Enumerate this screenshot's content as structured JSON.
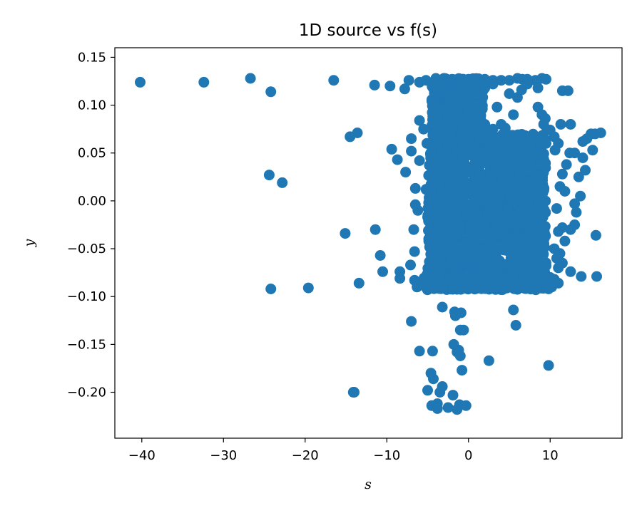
{
  "chart_data": {
    "type": "scatter",
    "title": "1D source vs f(s)",
    "xlabel": "s",
    "ylabel": "y",
    "xlim": [
      -43.3,
      18.8
    ],
    "ylim": [
      -0.248,
      0.16
    ],
    "xticks": [
      -40,
      -30,
      -20,
      -10,
      0,
      10
    ],
    "yticks": [
      -0.2,
      -0.15,
      -0.1,
      -0.05,
      0.0,
      0.05,
      0.1,
      0.15
    ],
    "xtick_labels": [
      "−40",
      "−30",
      "−20",
      "−10",
      "0",
      "10"
    ],
    "ytick_labels": [
      "−0.20",
      "−0.15",
      "−0.10",
      "−0.05",
      "0.00",
      "0.05",
      "0.10",
      "0.15"
    ],
    "grid": false,
    "marker_color": "#1f77b4",
    "series": [
      {
        "points": [
          [
            -40.2,
            0.124
          ],
          [
            -32.4,
            0.124
          ],
          [
            -26.7,
            0.128
          ],
          [
            -24.2,
            0.114
          ],
          [
            -16.5,
            0.126
          ],
          [
            -14.5,
            0.067
          ],
          [
            -13.6,
            0.071
          ],
          [
            -24.4,
            0.027
          ],
          [
            -22.8,
            0.019
          ],
          [
            -15.1,
            -0.034
          ],
          [
            -24.2,
            -0.092
          ],
          [
            -19.6,
            -0.091
          ],
          [
            -13.4,
            -0.086
          ],
          [
            -14.1,
            -0.2
          ],
          [
            -11.5,
            0.121
          ],
          [
            -9.6,
            0.12
          ],
          [
            -7.8,
            0.117
          ],
          [
            -9.4,
            0.054
          ],
          [
            -8.7,
            0.043
          ],
          [
            -7.7,
            0.03
          ],
          [
            -11.4,
            -0.03
          ],
          [
            -10.8,
            -0.057
          ],
          [
            -10.5,
            -0.074
          ],
          [
            -8.4,
            -0.074
          ],
          [
            -8.4,
            -0.081
          ],
          [
            -7.1,
            -0.067
          ],
          [
            -7.0,
            -0.126
          ],
          [
            -6.0,
            -0.157
          ],
          [
            -4.4,
            -0.157
          ],
          [
            -3.2,
            -0.111
          ],
          [
            -1.7,
            -0.116
          ],
          [
            -1.6,
            -0.12
          ],
          [
            -0.9,
            -0.117
          ],
          [
            -0.6,
            -0.135
          ],
          [
            -1.8,
            -0.15
          ],
          [
            -1.2,
            -0.156
          ],
          [
            -1.4,
            -0.158
          ],
          [
            -1.0,
            -0.162
          ],
          [
            -0.8,
            -0.177
          ],
          [
            -4.6,
            -0.18
          ],
          [
            -4.3,
            -0.186
          ],
          [
            -3.2,
            -0.194
          ],
          [
            -5.0,
            -0.198
          ],
          [
            -3.5,
            -0.2
          ],
          [
            -1.9,
            -0.203
          ],
          [
            -4.5,
            -0.214
          ],
          [
            -3.8,
            -0.212
          ],
          [
            -2.5,
            -0.216
          ],
          [
            -1.1,
            -0.213
          ],
          [
            -0.3,
            -0.214
          ],
          [
            -1.4,
            -0.218
          ],
          [
            -3.8,
            -0.217
          ],
          [
            -14.0,
            -0.2
          ],
          [
            2.5,
            -0.167
          ],
          [
            5.5,
            -0.114
          ],
          [
            5.8,
            -0.13
          ],
          [
            9.8,
            -0.172
          ],
          [
            -7.0,
            0.065
          ],
          [
            -7.0,
            0.052
          ],
          [
            -6.0,
            0.084
          ],
          [
            -6.0,
            0.042
          ],
          [
            -6.5,
            0.013
          ],
          [
            -6.5,
            -0.004
          ],
          [
            -6.2,
            -0.01
          ],
          [
            -6.7,
            -0.03
          ],
          [
            -6.6,
            -0.053
          ],
          [
            -6.6,
            -0.083
          ],
          [
            -6.3,
            -0.09
          ],
          [
            -5.2,
            0.012
          ],
          [
            -5.5,
            0.075
          ],
          [
            -5.1,
            0.06
          ],
          [
            -4.6,
            0.05
          ],
          [
            -7.3,
            0.126
          ],
          [
            -6.0,
            0.124
          ],
          [
            -5.2,
            0.126
          ],
          [
            -4.0,
            0.128
          ],
          [
            -3.0,
            0.128
          ],
          [
            -2.0,
            0.127
          ],
          [
            -1.0,
            0.126
          ],
          [
            0.0,
            0.127
          ],
          [
            1.0,
            0.127
          ],
          [
            2.0,
            0.127
          ],
          [
            3.0,
            0.126
          ],
          [
            4.0,
            0.126
          ],
          [
            5.0,
            0.126
          ],
          [
            6.0,
            0.128
          ],
          [
            6.6,
            0.127
          ],
          [
            7.2,
            0.127
          ],
          [
            8.2,
            0.126
          ],
          [
            9.0,
            0.128
          ],
          [
            9.5,
            0.127
          ],
          [
            -4.0,
            0.118
          ],
          [
            -3.0,
            0.115
          ],
          [
            -2.0,
            0.112
          ],
          [
            -1.0,
            0.11
          ],
          [
            0.0,
            0.115
          ],
          [
            1.0,
            0.112
          ],
          [
            2.0,
            0.118
          ],
          [
            3.0,
            0.122
          ],
          [
            3.5,
            0.098
          ],
          [
            5.0,
            0.112
          ],
          [
            5.5,
            0.09
          ],
          [
            6.0,
            0.108
          ],
          [
            6.5,
            0.116
          ],
          [
            7.2,
            0.122
          ],
          [
            8.5,
            0.118
          ],
          [
            8.5,
            0.098
          ],
          [
            9.0,
            0.09
          ],
          [
            9.4,
            0.086
          ],
          [
            9.2,
            0.08
          ],
          [
            9.6,
            0.074
          ],
          [
            -4.0,
            0.1
          ],
          [
            -3.0,
            0.095
          ],
          [
            -2.0,
            0.098
          ],
          [
            -1.0,
            0.1
          ],
          [
            0.0,
            0.095
          ],
          [
            1.0,
            0.1
          ],
          [
            1.5,
            0.096
          ],
          [
            -4.0,
            0.085
          ],
          [
            -2.5,
            0.088
          ],
          [
            0.5,
            0.085
          ],
          [
            2.0,
            0.08
          ],
          [
            3.0,
            0.075
          ],
          [
            4.0,
            0.08
          ],
          [
            4.5,
            0.076
          ],
          [
            10.0,
            0.074
          ],
          [
            10.5,
            0.067
          ],
          [
            11.0,
            0.06
          ],
          [
            10.6,
            0.053
          ],
          [
            9.5,
            0.06
          ],
          [
            12.5,
            0.08
          ],
          [
            12.0,
            0.038
          ],
          [
            11.5,
            0.028
          ],
          [
            11.2,
            0.015
          ],
          [
            11.8,
            0.01
          ],
          [
            10.8,
            -0.008
          ],
          [
            12.4,
            0.05
          ],
          [
            13.0,
            0.05
          ],
          [
            14.0,
            0.045
          ],
          [
            14.0,
            0.062
          ],
          [
            14.5,
            0.065
          ],
          [
            15.0,
            0.07
          ],
          [
            15.5,
            0.07
          ],
          [
            16.2,
            0.071
          ],
          [
            15.2,
            0.053
          ],
          [
            14.3,
            0.032
          ],
          [
            13.5,
            0.025
          ],
          [
            13.7,
            0.005
          ],
          [
            13.0,
            -0.003
          ],
          [
            13.2,
            -0.012
          ],
          [
            13.0,
            -0.025
          ],
          [
            12.5,
            -0.03
          ],
          [
            11.5,
            -0.028
          ],
          [
            11.0,
            -0.032
          ],
          [
            11.8,
            -0.042
          ],
          [
            10.5,
            -0.05
          ],
          [
            11.2,
            -0.055
          ],
          [
            10.8,
            -0.06
          ],
          [
            11.5,
            -0.065
          ],
          [
            11.0,
            -0.07
          ],
          [
            12.5,
            -0.074
          ],
          [
            13.8,
            -0.079
          ],
          [
            15.7,
            -0.079
          ],
          [
            15.6,
            -0.036
          ],
          [
            10.0,
            -0.08
          ],
          [
            10.5,
            -0.082
          ],
          [
            11.0,
            -0.086
          ],
          [
            10.2,
            -0.09
          ],
          [
            9.8,
            -0.092
          ],
          [
            11.5,
            0.115
          ],
          [
            12.2,
            0.115
          ],
          [
            11.3,
            0.08
          ],
          [
            -1.0,
            -0.135
          ]
        ],
        "dense_regions": [
          {
            "x_range": [
              -5.0,
              9.5
            ],
            "y_range": [
              -0.092,
              0.07
            ],
            "count": 1500
          },
          {
            "x_range": [
              -4.5,
              1.8
            ],
            "y_range": [
              0.06,
              0.128
            ],
            "count": 500
          },
          {
            "x_range": [
              -5.5,
              9.0
            ],
            "y_range": [
              -0.093,
              -0.075
            ],
            "count": 300
          }
        ]
      }
    ]
  }
}
